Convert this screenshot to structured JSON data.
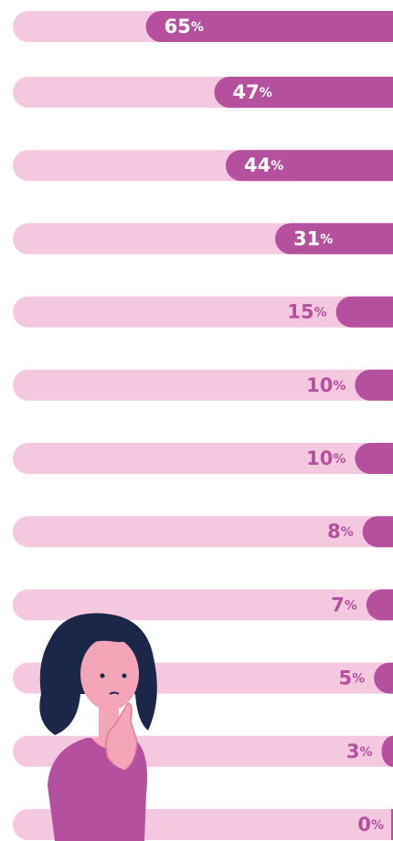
{
  "chart_data": {
    "type": "bar",
    "orientation": "horizontal",
    "values": [
      65,
      47,
      44,
      31,
      15,
      10,
      10,
      8,
      7,
      5,
      3,
      0
    ],
    "value_labels": [
      "65%",
      "47%",
      "44%",
      "31%",
      "15%",
      "10%",
      "10%",
      "8%",
      "7%",
      "5%",
      "3%",
      "0%"
    ],
    "xlim": [
      0,
      100
    ],
    "color": "#b5509f",
    "track_color": "#f4c9df"
  }
}
